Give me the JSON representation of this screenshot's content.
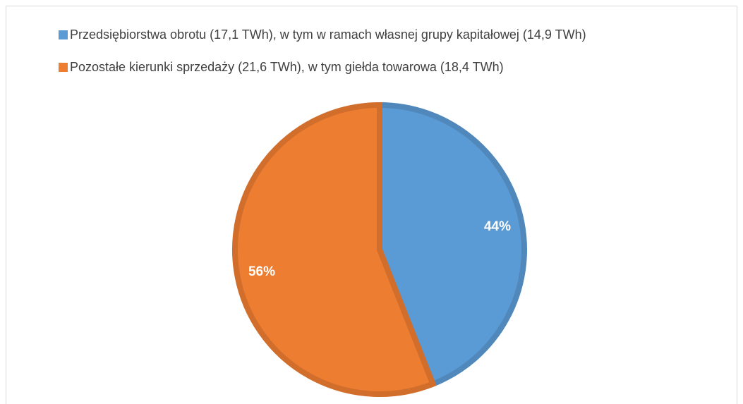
{
  "chart_data": {
    "type": "pie",
    "categories": [
      "Przedsiębiorstwa obrotu (17,1 TWh), w tym w ramach własnej grupy kapitałowej (14,9 TWh)",
      "Pozostałe kierunki sprzedaży (21,6 TWh), w tym giełda towarowa (18,4 TWh)"
    ],
    "values": [
      44,
      56
    ],
    "value_labels": [
      "44%",
      "56%"
    ],
    "colors": [
      "#5b9bd5",
      "#ed7d31"
    ],
    "legend": "top"
  }
}
